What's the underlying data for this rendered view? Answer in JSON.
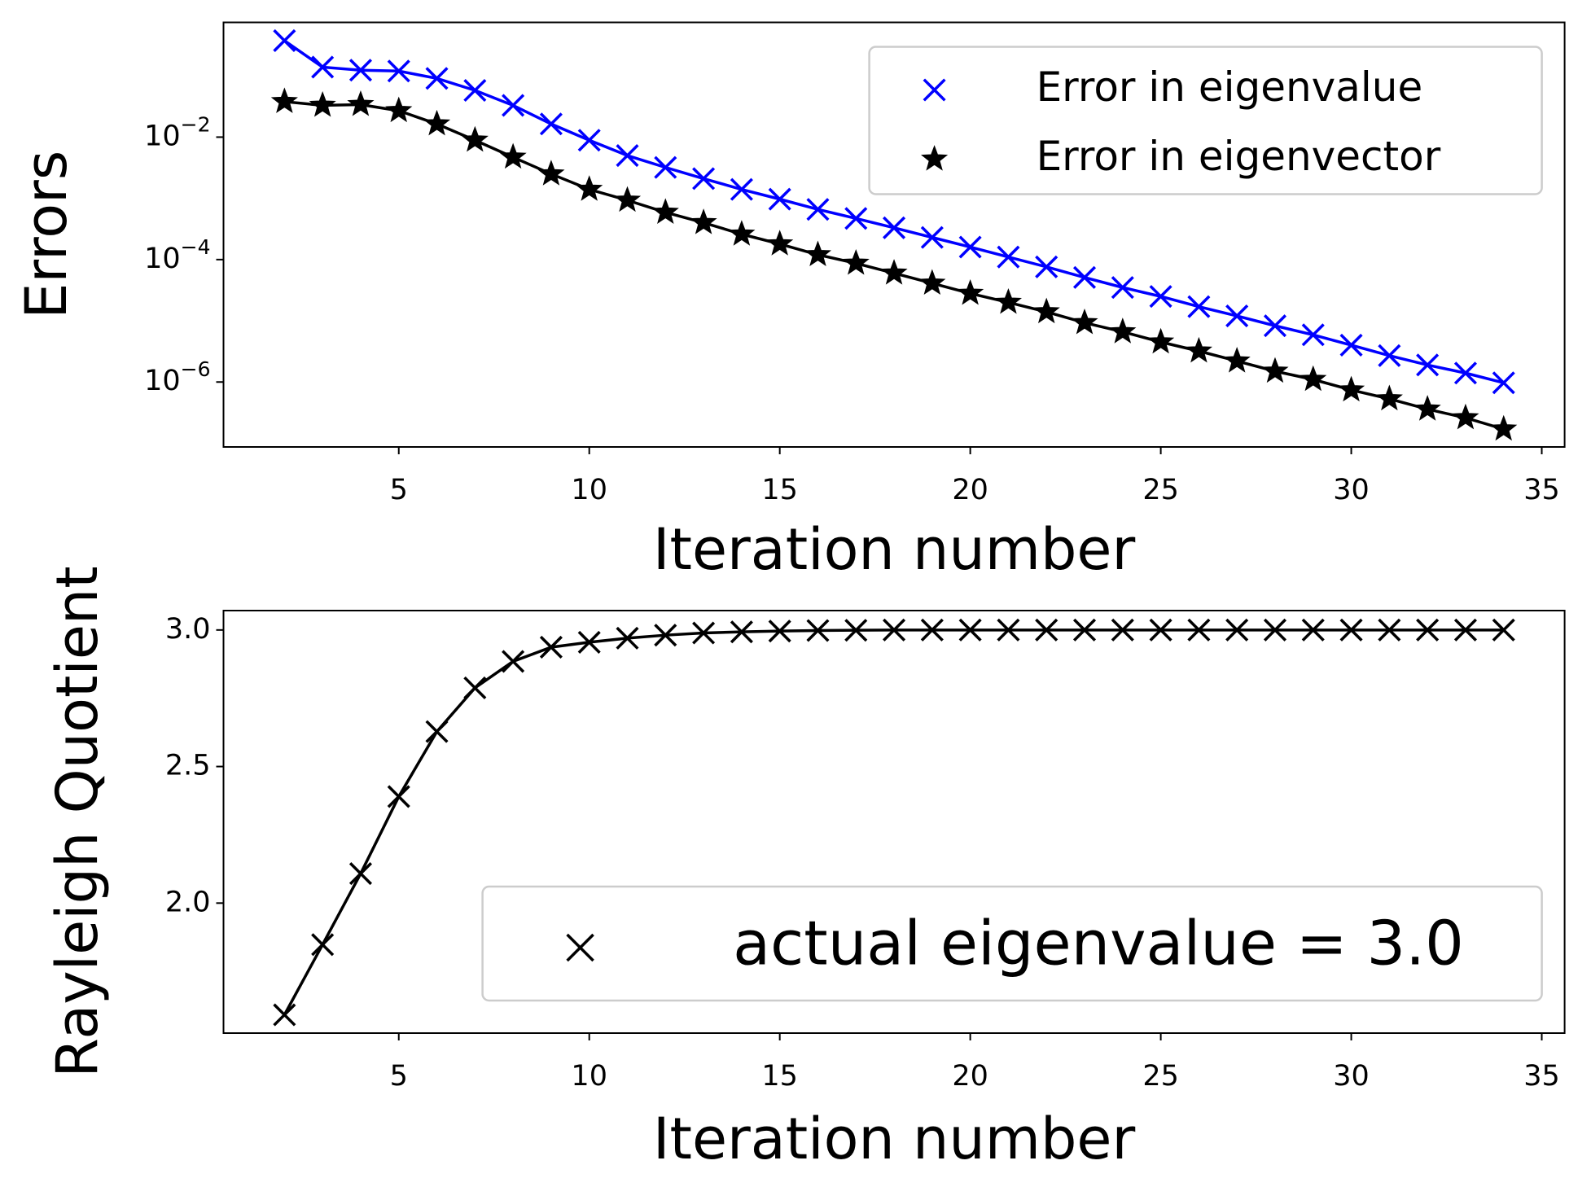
{
  "chart_data": [
    {
      "type": "line",
      "yscale": "log",
      "ylabel": "Errors",
      "xlabel": "Iteration number",
      "legend": "upper right",
      "x": [
        2,
        3,
        4,
        5,
        6,
        7,
        8,
        9,
        10,
        11,
        12,
        13,
        14,
        15,
        16,
        17,
        18,
        19,
        20,
        21,
        22,
        23,
        24,
        25,
        26,
        27,
        28,
        29,
        30,
        31,
        32,
        33,
        34
      ],
      "series": [
        {
          "name": "Error in eigenvalue",
          "color": "#0000ff",
          "marker": "x",
          "values": [
            0.376,
            0.139,
            0.124,
            0.12,
            0.091,
            0.058,
            0.033,
            0.0164,
            0.0089,
            0.005,
            0.0032,
            0.0021,
            0.0014,
            0.00097,
            0.00066,
            0.00047,
            0.00033,
            0.00023,
            0.00016,
            0.00011,
            7.6e-05,
            5.1e-05,
            3.5e-05,
            2.5e-05,
            1.7e-05,
            1.2e-05,
            8.3e-06,
            5.9e-06,
            4e-06,
            2.7e-06,
            1.9e-06,
            1.4e-06,
            9.7e-07
          ]
        },
        {
          "name": "Error in eigenvector",
          "color": "#000000",
          "marker": "star",
          "values": [
            0.038,
            0.033,
            0.034,
            0.027,
            0.0164,
            0.0089,
            0.0047,
            0.0025,
            0.0014,
            0.00093,
            0.00059,
            0.0004,
            0.00026,
            0.00018,
            0.00012,
            8.7e-05,
            6e-05,
            4.1e-05,
            2.8e-05,
            2e-05,
            1.4e-05,
            9.3e-06,
            6.6e-06,
            4.5e-06,
            3.2e-06,
            2.2e-06,
            1.5e-06,
            1.1e-06,
            7.4e-07,
            5.3e-07,
            3.6e-07,
            2.6e-07,
            1.7e-07
          ]
        }
      ],
      "xlim": [
        0.4,
        35.6
      ],
      "xticks": [
        5,
        10,
        15,
        20,
        25,
        30,
        35
      ],
      "ylim": [
        8.7e-08,
        0.748
      ],
      "yticks": [
        {
          "value": 0.01,
          "label": "10−2"
        },
        {
          "value": 0.0001,
          "label": "10−4"
        },
        {
          "value": 1e-06,
          "label": "10−6"
        }
      ]
    },
    {
      "type": "line",
      "ylabel": "Rayleigh Quotient",
      "xlabel": "Iteration number",
      "legend": "lower right",
      "x": [
        2,
        3,
        4,
        5,
        6,
        7,
        8,
        9,
        10,
        11,
        12,
        13,
        14,
        15,
        16,
        17,
        18,
        19,
        20,
        21,
        22,
        23,
        24,
        25,
        26,
        27,
        28,
        29,
        30,
        31,
        32,
        33,
        34
      ],
      "series": [
        {
          "name": "actual eigenvalue = 3.0",
          "color": "#000000",
          "marker": "x",
          "values": [
            1.591,
            1.848,
            2.108,
            2.39,
            2.628,
            2.788,
            2.885,
            2.937,
            2.955,
            2.97,
            2.981,
            2.989,
            2.993,
            2.996,
            2.998,
            2.999,
            3.0,
            3.0,
            3.0,
            3.0,
            3.0,
            3.0,
            3.0,
            3.0,
            3.0,
            3.0,
            3.0,
            3.0,
            3.0,
            3.0,
            3.0,
            3.0,
            3.0
          ]
        }
      ],
      "xlim": [
        0.4,
        35.6
      ],
      "xticks": [
        5,
        10,
        15,
        20,
        25,
        30,
        35
      ],
      "ylim": [
        1.524,
        3.071
      ],
      "yticks": [
        {
          "value": 2.0,
          "label": "2.0"
        },
        {
          "value": 2.5,
          "label": "2.5"
        },
        {
          "value": 3.0,
          "label": "3.0"
        }
      ]
    }
  ]
}
